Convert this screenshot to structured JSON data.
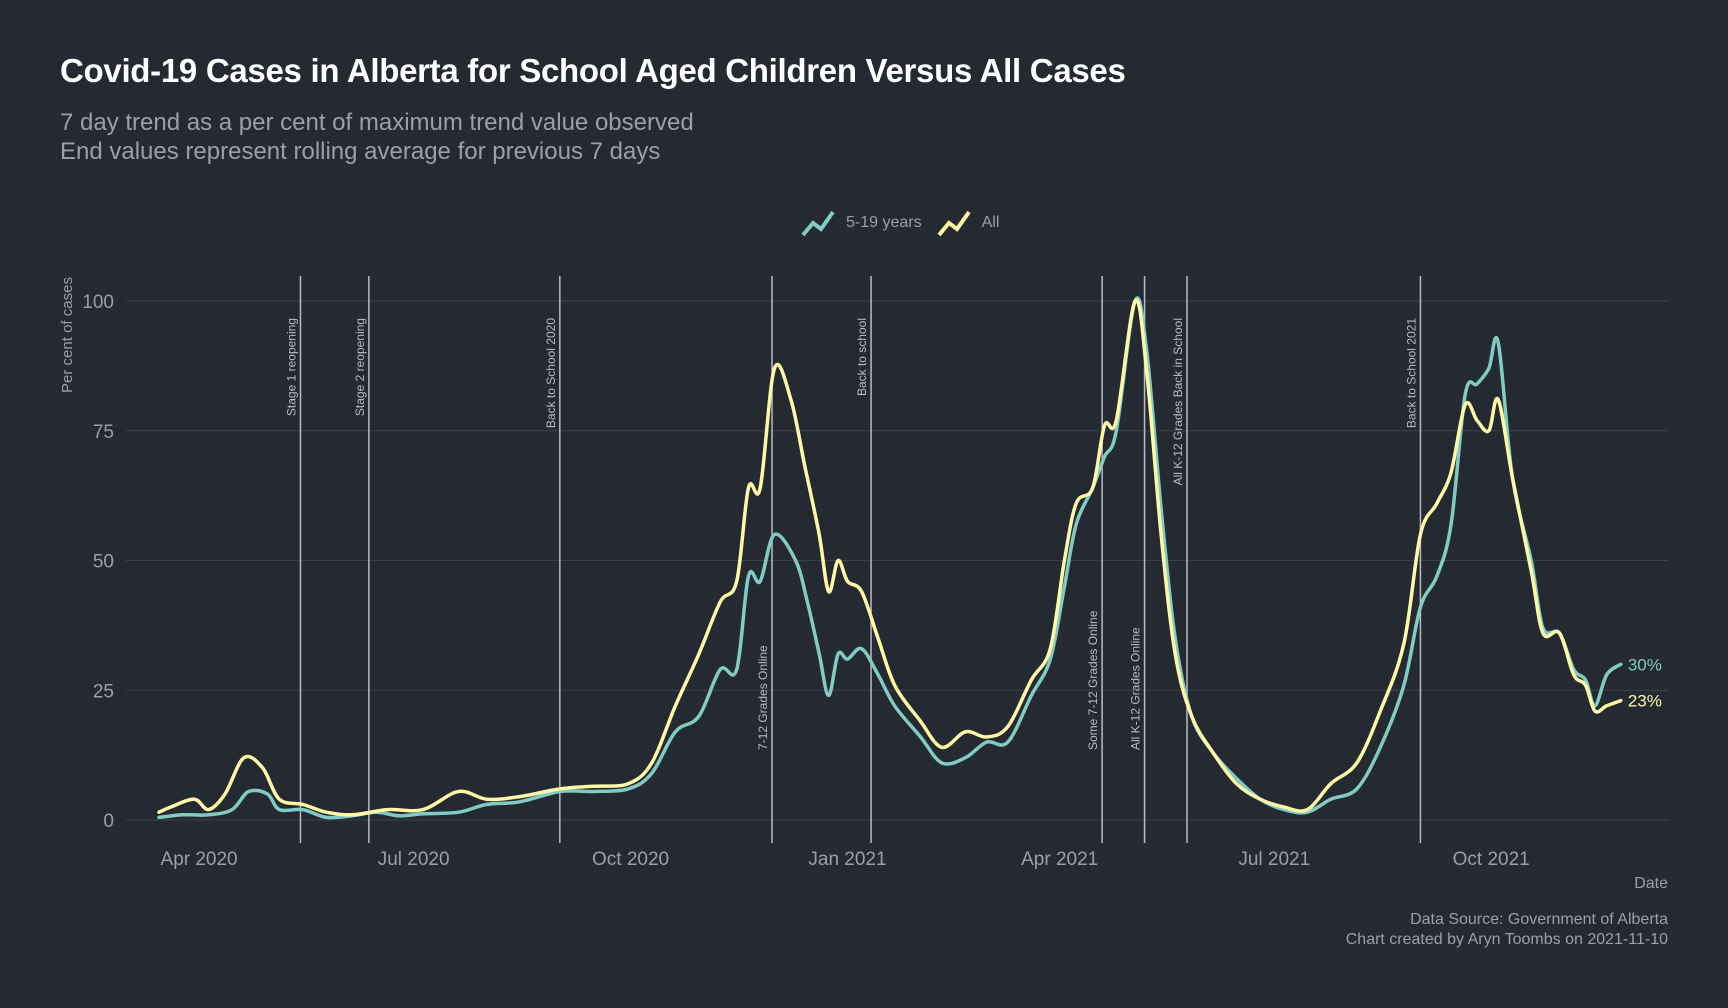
{
  "title": "Covid-19 Cases in Alberta for School Aged Children Versus All Cases",
  "subtitle_lines": [
    "7 day trend as a per cent of maximum trend value observed",
    "End values represent rolling average for previous 7 days"
  ],
  "caption_lines": [
    "Data Source: Government of Alberta",
    "Chart created by Aryn Toombs on 2021-11-10"
  ],
  "chart_data": {
    "type": "line",
    "xlabel": "Date",
    "ylabel": "Per cent of cases",
    "xlim": [
      "2020-03-01",
      "2021-12-15"
    ],
    "ylim": [
      0,
      100
    ],
    "y_ticks": [
      0,
      25,
      50,
      75,
      100
    ],
    "x_ticks": [
      {
        "date": "2020-04-01",
        "label": "Apr 2020"
      },
      {
        "date": "2020-07-01",
        "label": "Jul 2020"
      },
      {
        "date": "2020-10-01",
        "label": "Oct 2020"
      },
      {
        "date": "2021-01-01",
        "label": "Jan 2021"
      },
      {
        "date": "2021-04-01",
        "label": "Apr 2021"
      },
      {
        "date": "2021-07-01",
        "label": "Jul 2021"
      },
      {
        "date": "2021-10-01",
        "label": "Oct 2021"
      }
    ],
    "grid": true,
    "legend_position": "top",
    "events": [
      {
        "date": "2020-05-14",
        "label": "Stage 1 reopening",
        "label_position": "top"
      },
      {
        "date": "2020-06-12",
        "label": "Stage 2 reopening",
        "label_position": "top"
      },
      {
        "date": "2020-09-01",
        "label": "Back to School 2020",
        "label_position": "top"
      },
      {
        "date": "2020-11-30",
        "label": "7-12 Grades Online",
        "label_position": "bottom"
      },
      {
        "date": "2021-01-11",
        "label": "Back to school",
        "label_position": "top"
      },
      {
        "date": "2021-04-19",
        "label": "Some 7-12 Grades Online",
        "label_position": "bottom"
      },
      {
        "date": "2021-05-07",
        "label": "All K-12 Grades Online",
        "label_position": "bottom"
      },
      {
        "date": "2021-05-25",
        "label": "All K-12 Grades Back in School",
        "label_position": "top"
      },
      {
        "date": "2021-09-01",
        "label": "Back to School 2021",
        "label_position": "top"
      }
    ],
    "series": [
      {
        "name": "5-19 years",
        "color": "#80cbc4",
        "end_label": "30%",
        "points": [
          [
            "2020-03-15",
            0.5
          ],
          [
            "2020-03-25",
            1
          ],
          [
            "2020-04-05",
            1
          ],
          [
            "2020-04-15",
            2
          ],
          [
            "2020-04-22",
            5.5
          ],
          [
            "2020-04-30",
            5
          ],
          [
            "2020-05-05",
            2
          ],
          [
            "2020-05-15",
            2
          ],
          [
            "2020-05-25",
            0.5
          ],
          [
            "2020-06-05",
            0.8
          ],
          [
            "2020-06-15",
            1.5
          ],
          [
            "2020-06-25",
            0.8
          ],
          [
            "2020-07-05",
            1.2
          ],
          [
            "2020-07-20",
            1.5
          ],
          [
            "2020-08-01",
            3
          ],
          [
            "2020-08-15",
            3.5
          ],
          [
            "2020-09-01",
            5.5
          ],
          [
            "2020-09-15",
            5.5
          ],
          [
            "2020-09-30",
            6
          ],
          [
            "2020-10-10",
            9
          ],
          [
            "2020-10-20",
            17
          ],
          [
            "2020-10-30",
            20
          ],
          [
            "2020-11-08",
            29
          ],
          [
            "2020-11-15",
            29
          ],
          [
            "2020-11-20",
            47
          ],
          [
            "2020-11-25",
            46
          ],
          [
            "2020-12-01",
            55
          ],
          [
            "2020-12-10",
            50
          ],
          [
            "2020-12-15",
            42
          ],
          [
            "2020-12-20",
            32
          ],
          [
            "2020-12-24",
            24
          ],
          [
            "2020-12-28",
            32
          ],
          [
            "2021-01-01",
            31
          ],
          [
            "2021-01-07",
            33
          ],
          [
            "2021-01-14",
            28
          ],
          [
            "2021-01-21",
            22
          ],
          [
            "2021-02-01",
            16
          ],
          [
            "2021-02-10",
            11
          ],
          [
            "2021-02-20",
            12
          ],
          [
            "2021-03-01",
            15
          ],
          [
            "2021-03-10",
            15
          ],
          [
            "2021-03-20",
            24
          ],
          [
            "2021-03-28",
            31
          ],
          [
            "2021-04-03",
            45
          ],
          [
            "2021-04-08",
            57
          ],
          [
            "2021-04-15",
            64
          ],
          [
            "2021-04-20",
            70
          ],
          [
            "2021-04-25",
            75
          ],
          [
            "2021-05-03",
            100
          ],
          [
            "2021-05-08",
            90
          ],
          [
            "2021-05-14",
            60
          ],
          [
            "2021-05-20",
            35
          ],
          [
            "2021-05-27",
            20
          ],
          [
            "2021-06-05",
            13
          ],
          [
            "2021-06-15",
            8
          ],
          [
            "2021-06-25",
            4
          ],
          [
            "2021-07-05",
            2
          ],
          [
            "2021-07-15",
            1.5
          ],
          [
            "2021-07-25",
            4
          ],
          [
            "2021-08-05",
            6
          ],
          [
            "2021-08-15",
            14
          ],
          [
            "2021-08-25",
            26
          ],
          [
            "2021-09-01",
            41
          ],
          [
            "2021-09-08",
            47
          ],
          [
            "2021-09-14",
            57
          ],
          [
            "2021-09-20",
            82
          ],
          [
            "2021-09-25",
            84
          ],
          [
            "2021-09-30",
            87
          ],
          [
            "2021-10-04",
            92
          ],
          [
            "2021-10-10",
            66
          ],
          [
            "2021-10-18",
            50
          ],
          [
            "2021-10-23",
            37
          ],
          [
            "2021-10-30",
            36
          ],
          [
            "2021-11-05",
            29
          ],
          [
            "2021-11-10",
            27
          ],
          [
            "2021-11-14",
            22
          ],
          [
            "2021-11-19",
            28
          ],
          [
            "2021-11-25",
            30
          ]
        ]
      },
      {
        "name": "All",
        "color": "#fff9a5",
        "end_label": "23%",
        "points": [
          [
            "2020-03-15",
            1.5
          ],
          [
            "2020-03-20",
            2.5
          ],
          [
            "2020-03-30",
            4
          ],
          [
            "2020-04-05",
            2
          ],
          [
            "2020-04-12",
            5
          ],
          [
            "2020-04-20",
            12
          ],
          [
            "2020-04-28",
            10
          ],
          [
            "2020-05-05",
            4
          ],
          [
            "2020-05-15",
            3
          ],
          [
            "2020-05-25",
            1.5
          ],
          [
            "2020-06-05",
            1
          ],
          [
            "2020-06-20",
            2
          ],
          [
            "2020-07-05",
            2
          ],
          [
            "2020-07-20",
            5.5
          ],
          [
            "2020-08-01",
            4
          ],
          [
            "2020-08-15",
            4.5
          ],
          [
            "2020-09-01",
            6
          ],
          [
            "2020-09-15",
            6.5
          ],
          [
            "2020-09-30",
            7
          ],
          [
            "2020-10-10",
            11
          ],
          [
            "2020-10-20",
            22
          ],
          [
            "2020-10-30",
            32
          ],
          [
            "2020-11-08",
            42
          ],
          [
            "2020-11-15",
            46
          ],
          [
            "2020-11-20",
            64
          ],
          [
            "2020-11-25",
            64
          ],
          [
            "2020-12-01",
            87
          ],
          [
            "2020-12-08",
            81
          ],
          [
            "2020-12-14",
            68
          ],
          [
            "2020-12-20",
            55
          ],
          [
            "2020-12-24",
            44
          ],
          [
            "2020-12-28",
            50
          ],
          [
            "2021-01-01",
            46
          ],
          [
            "2021-01-07",
            44
          ],
          [
            "2021-01-14",
            35
          ],
          [
            "2021-01-21",
            26
          ],
          [
            "2021-02-01",
            19
          ],
          [
            "2021-02-10",
            14
          ],
          [
            "2021-02-20",
            17
          ],
          [
            "2021-03-01",
            16
          ],
          [
            "2021-03-10",
            18
          ],
          [
            "2021-03-20",
            27
          ],
          [
            "2021-03-28",
            33
          ],
          [
            "2021-04-03",
            50
          ],
          [
            "2021-04-08",
            61
          ],
          [
            "2021-04-15",
            64
          ],
          [
            "2021-04-20",
            76
          ],
          [
            "2021-04-25",
            77
          ],
          [
            "2021-05-03",
            100
          ],
          [
            "2021-05-08",
            86
          ],
          [
            "2021-05-14",
            55
          ],
          [
            "2021-05-20",
            32
          ],
          [
            "2021-05-27",
            20
          ],
          [
            "2021-06-05",
            13
          ],
          [
            "2021-06-15",
            7
          ],
          [
            "2021-06-25",
            4
          ],
          [
            "2021-07-05",
            2.5
          ],
          [
            "2021-07-15",
            2
          ],
          [
            "2021-07-25",
            7
          ],
          [
            "2021-08-05",
            11
          ],
          [
            "2021-08-15",
            21
          ],
          [
            "2021-08-25",
            34
          ],
          [
            "2021-09-01",
            55
          ],
          [
            "2021-09-08",
            61
          ],
          [
            "2021-09-14",
            67
          ],
          [
            "2021-09-20",
            80
          ],
          [
            "2021-09-25",
            77
          ],
          [
            "2021-09-30",
            75
          ],
          [
            "2021-10-04",
            81
          ],
          [
            "2021-10-10",
            66
          ],
          [
            "2021-10-18",
            48
          ],
          [
            "2021-10-23",
            36
          ],
          [
            "2021-10-30",
            36
          ],
          [
            "2021-11-05",
            28
          ],
          [
            "2021-11-10",
            26
          ],
          [
            "2021-11-14",
            21
          ],
          [
            "2021-11-19",
            22
          ],
          [
            "2021-11-25",
            23
          ]
        ]
      }
    ]
  }
}
